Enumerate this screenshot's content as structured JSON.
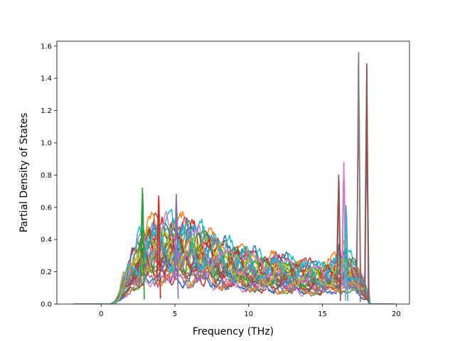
{
  "chart_data": {
    "type": "line",
    "title": "",
    "xlabel": "Frequency (THz)",
    "ylabel": "Partial Density of States",
    "xlim": [
      -3.0,
      20.9
    ],
    "ylim": [
      0.0,
      1.63
    ],
    "x_ticks": [
      0,
      5,
      10,
      15,
      20
    ],
    "y_ticks": [
      0.0,
      0.2,
      0.4,
      0.6,
      0.8,
      1.0,
      1.2,
      1.4,
      1.6
    ],
    "x_tick_labels": [
      "0",
      "5",
      "10",
      "15",
      "20"
    ],
    "y_tick_labels": [
      "0.0",
      "0.2",
      "0.4",
      "0.6",
      "0.8",
      "1.0",
      "1.2",
      "1.4",
      "1.6"
    ],
    "grid": false,
    "legend": "none",
    "palette": [
      "#1f77b4",
      "#ff7f0e",
      "#2ca02c",
      "#d62728",
      "#9467bd",
      "#8c564b",
      "#e377c2",
      "#7f7f7f",
      "#bcbd22",
      "#17becf"
    ],
    "series_count": 30,
    "frequency_range": [
      -1.9,
      19.9
    ],
    "envelope": [
      [
        -1.9,
        0.0
      ],
      [
        0.6,
        0.0
      ],
      [
        1.0,
        0.02
      ],
      [
        1.5,
        0.12
      ],
      [
        2.0,
        0.2
      ],
      [
        2.5,
        0.27
      ],
      [
        3.0,
        0.31
      ],
      [
        3.5,
        0.33
      ],
      [
        4.0,
        0.34
      ],
      [
        4.5,
        0.34
      ],
      [
        5.0,
        0.33
      ],
      [
        5.5,
        0.32
      ],
      [
        6.0,
        0.31
      ],
      [
        6.5,
        0.3
      ],
      [
        7.0,
        0.29
      ],
      [
        7.5,
        0.27
      ],
      [
        8.0,
        0.25
      ],
      [
        8.5,
        0.24
      ],
      [
        9.0,
        0.23
      ],
      [
        9.5,
        0.22
      ],
      [
        10.0,
        0.21
      ],
      [
        10.5,
        0.2
      ],
      [
        11.0,
        0.19
      ],
      [
        11.5,
        0.19
      ],
      [
        12.0,
        0.19
      ],
      [
        12.5,
        0.19
      ],
      [
        13.0,
        0.18
      ],
      [
        13.5,
        0.17
      ],
      [
        14.0,
        0.16
      ],
      [
        14.5,
        0.16
      ],
      [
        15.0,
        0.16
      ],
      [
        15.5,
        0.17
      ],
      [
        16.0,
        0.19
      ],
      [
        16.5,
        0.21
      ],
      [
        17.0,
        0.18
      ],
      [
        17.5,
        0.12
      ],
      [
        18.0,
        0.05
      ],
      [
        18.2,
        0.0
      ],
      [
        19.9,
        0.0
      ]
    ],
    "peaks": [
      {
        "x": 2.8,
        "y": 0.72
      },
      {
        "x": 3.9,
        "y": 0.67
      },
      {
        "x": 5.1,
        "y": 0.68
      },
      {
        "x": 16.1,
        "y": 0.8
      },
      {
        "x": 16.45,
        "y": 0.88
      },
      {
        "x": 16.6,
        "y": 0.61
      },
      {
        "x": 17.45,
        "y": 1.56
      },
      {
        "x": 18.0,
        "y": 1.49
      }
    ]
  }
}
